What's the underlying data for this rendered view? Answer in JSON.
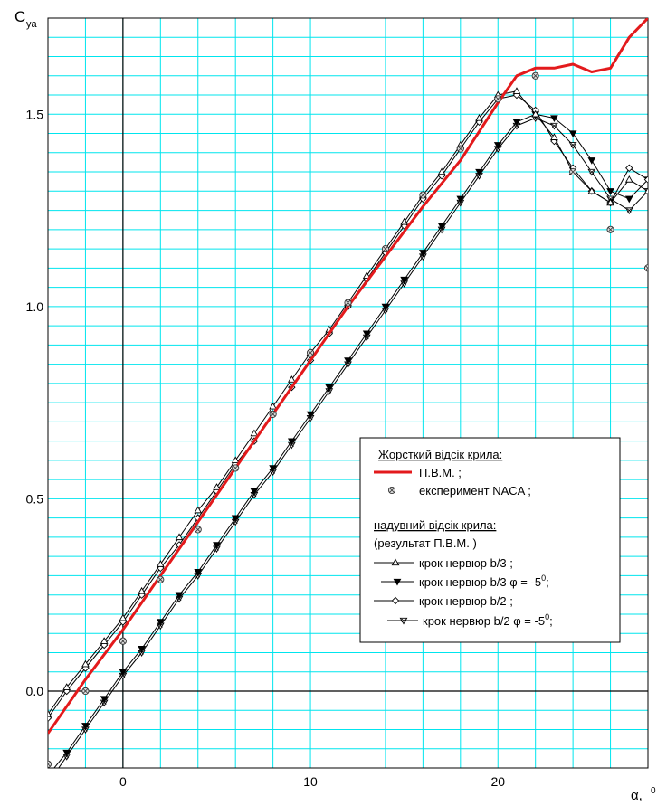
{
  "chart_data": {
    "type": "line",
    "ylabel_main": "C",
    "ylabel_sub": "ya",
    "xlabel": "α, ",
    "xlabel_unit": "0",
    "xlim": [
      -4,
      28
    ],
    "ylim": [
      -0.2,
      1.75
    ],
    "grid": true,
    "x_ticks": [
      0,
      10,
      20
    ],
    "y_ticks": [
      0.0,
      0.5,
      1.0,
      1.5
    ],
    "x_tick_labels": [
      "0",
      "10",
      "20"
    ],
    "y_tick_labels": [
      "0.0",
      "0.5",
      "1.0",
      "1.5"
    ],
    "legend": {
      "placement": "center-right",
      "group1_title": "Жорсткий відсік крила:",
      "pvm_label": "П.В.М. ;",
      "naca_label": "експеримент NACA ;",
      "group2_title": "надувний відсік крила:",
      "group2_subtitle": "(результат П.В.М. )",
      "b3_label": "крок нервюр b/3 ;",
      "b3phi_label_a": "крок нервюр b/3 φ = -5",
      "b3phi_sup": "0",
      "b3phi_label_b": ";",
      "b2_label": "крок нервюр b/2 ;",
      "b2phi_label_a": "крок нервюр b/2 φ = -5",
      "b2phi_sup": "0",
      "b2phi_label_b": ";"
    },
    "series": [
      {
        "key": "pvm",
        "color": "#e31a1c",
        "x": [
          -4,
          -2,
          0,
          2,
          4,
          6,
          8,
          10,
          12,
          14,
          16,
          18,
          20,
          21,
          22,
          23,
          24,
          25,
          26,
          27,
          28
        ],
        "y": [
          -0.11,
          0.03,
          0.16,
          0.3,
          0.44,
          0.58,
          0.72,
          0.86,
          1.0,
          1.13,
          1.26,
          1.38,
          1.53,
          1.6,
          1.62,
          1.62,
          1.63,
          1.61,
          1.62,
          1.7,
          1.75
        ]
      },
      {
        "key": "naca",
        "color": "#000000",
        "x": [
          -4,
          -2,
          0,
          2,
          4,
          6,
          8,
          10,
          12,
          14,
          16,
          18,
          20,
          22,
          24,
          26,
          28
        ],
        "y": [
          -0.19,
          0.0,
          0.13,
          0.29,
          0.42,
          0.58,
          0.72,
          0.88,
          1.01,
          1.15,
          1.29,
          1.41,
          1.54,
          1.6,
          1.35,
          1.2,
          1.1
        ]
      },
      {
        "key": "b3",
        "color": "#000000",
        "x": [
          -4,
          -3,
          -2,
          -1,
          0,
          1,
          2,
          3,
          4,
          5,
          6,
          7,
          8,
          9,
          10,
          11,
          12,
          13,
          14,
          15,
          16,
          17,
          18,
          19,
          20,
          21,
          22,
          23,
          24,
          25,
          26,
          27,
          28
        ],
        "y": [
          -0.06,
          0.01,
          0.07,
          0.13,
          0.19,
          0.26,
          0.33,
          0.4,
          0.47,
          0.53,
          0.6,
          0.67,
          0.74,
          0.81,
          0.88,
          0.94,
          1.01,
          1.08,
          1.15,
          1.22,
          1.29,
          1.35,
          1.42,
          1.49,
          1.55,
          1.56,
          1.5,
          1.44,
          1.35,
          1.3,
          1.27,
          1.33,
          1.3
        ]
      },
      {
        "key": "b3phi",
        "color": "#000000",
        "x": [
          -4,
          -3,
          -2,
          -1,
          0,
          1,
          2,
          3,
          4,
          5,
          6,
          7,
          8,
          9,
          10,
          11,
          12,
          13,
          14,
          15,
          16,
          17,
          18,
          19,
          20,
          21,
          22,
          23,
          24,
          25,
          26,
          27,
          28
        ],
        "y": [
          -0.22,
          -0.16,
          -0.09,
          -0.02,
          0.05,
          0.11,
          0.18,
          0.25,
          0.31,
          0.38,
          0.45,
          0.52,
          0.58,
          0.65,
          0.72,
          0.79,
          0.86,
          0.93,
          1.0,
          1.07,
          1.14,
          1.21,
          1.28,
          1.35,
          1.42,
          1.48,
          1.5,
          1.49,
          1.45,
          1.38,
          1.3,
          1.28,
          1.33
        ]
      },
      {
        "key": "b2",
        "color": "#000000",
        "x": [
          -4,
          -3,
          -2,
          -1,
          0,
          1,
          2,
          3,
          4,
          5,
          6,
          7,
          8,
          9,
          10,
          11,
          12,
          13,
          14,
          15,
          16,
          17,
          18,
          19,
          20,
          21,
          22,
          23,
          24,
          25,
          26,
          27,
          28
        ],
        "y": [
          -0.07,
          0.0,
          0.06,
          0.12,
          0.18,
          0.25,
          0.32,
          0.38,
          0.45,
          0.52,
          0.59,
          0.65,
          0.72,
          0.79,
          0.86,
          0.93,
          1.0,
          1.07,
          1.14,
          1.21,
          1.28,
          1.34,
          1.41,
          1.48,
          1.54,
          1.55,
          1.51,
          1.43,
          1.36,
          1.3,
          1.27,
          1.36,
          1.33
        ]
      },
      {
        "key": "b2phi",
        "color": "#000000",
        "x": [
          -4,
          -3,
          -2,
          -1,
          0,
          1,
          2,
          3,
          4,
          5,
          6,
          7,
          8,
          9,
          10,
          11,
          12,
          13,
          14,
          15,
          16,
          17,
          18,
          19,
          20,
          21,
          22,
          23,
          24,
          25,
          26,
          27,
          28
        ],
        "y": [
          -0.24,
          -0.17,
          -0.1,
          -0.03,
          0.04,
          0.1,
          0.17,
          0.24,
          0.3,
          0.37,
          0.44,
          0.51,
          0.57,
          0.64,
          0.71,
          0.78,
          0.85,
          0.92,
          0.99,
          1.06,
          1.13,
          1.2,
          1.27,
          1.34,
          1.41,
          1.47,
          1.49,
          1.47,
          1.42,
          1.35,
          1.28,
          1.25,
          1.3
        ]
      }
    ],
    "colors": {
      "grid": "#00e5ee",
      "axes": "#000000",
      "pvm": "#e31a1c"
    }
  }
}
